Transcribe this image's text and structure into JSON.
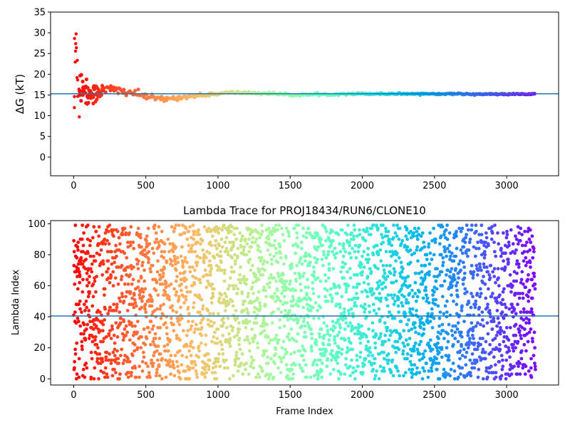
{
  "chart_data": [
    {
      "type": "scatter",
      "title": "",
      "xlabel": "",
      "ylabel": "ΔG (kT)",
      "xlim": [
        -160,
        3360
      ],
      "ylim": [
        -4.5,
        35
      ],
      "xticks": [
        0,
        500,
        1000,
        1500,
        2000,
        2500,
        3000
      ],
      "yticks": [
        0,
        5,
        10,
        15,
        20,
        25,
        30,
        35
      ],
      "colormap": "rainbow",
      "hline": {
        "y": 15.3,
        "color": "#1f77b4"
      },
      "series": [
        {
          "n_frames": 3200,
          "x_step": 8,
          "x": [
            0,
            6,
            12,
            20,
            28,
            36,
            44,
            52,
            60,
            72,
            84,
            96,
            110,
            124,
            140,
            160,
            180,
            200,
            225,
            250,
            275,
            300,
            340,
            380,
            420,
            460,
            500,
            540,
            580,
            620,
            660,
            700,
            750,
            800,
            850,
            900,
            950,
            1000,
            1100,
            1200,
            1300,
            1400,
            1500,
            1600,
            1700,
            1800,
            1900,
            2000,
            2200,
            2400,
            2600,
            2800,
            3000,
            3200
          ],
          "y": [
            15,
            20,
            30,
            25,
            18,
            17,
            16,
            17.5,
            17.8,
            16.5,
            15.6,
            15.2,
            15.1,
            15.6,
            15.3,
            15.7,
            15.9,
            16.0,
            16.2,
            16.3,
            16.2,
            16.0,
            15.9,
            15.7,
            15.4,
            15.0,
            14.6,
            14.3,
            14.1,
            14.0,
            14.1,
            14.3,
            14.5,
            14.6,
            14.8,
            15.0,
            15.2,
            15.3,
            15.6,
            15.5,
            15.4,
            15.3,
            15.0,
            15.1,
            15.1,
            15.2,
            15.3,
            15.3,
            15.3,
            15.3,
            15.3,
            15.2,
            15.2,
            15.2
          ],
          "spread": [
            14,
            14,
            12,
            10,
            8,
            6,
            4.5,
            3.5,
            3,
            2.6,
            2.4,
            2.2,
            2.0,
            1.9,
            1.7,
            1.5,
            1.3,
            1.2,
            1.1,
            1.0,
            0.95,
            0.9,
            0.8,
            0.7,
            0.65,
            0.6,
            0.55,
            0.5,
            0.45,
            0.42,
            0.4,
            0.38,
            0.35,
            0.33,
            0.3,
            0.3,
            0.28,
            0.26,
            0.24,
            0.22,
            0.2,
            0.2,
            0.19,
            0.18,
            0.17,
            0.16,
            0.15,
            0.14,
            0.13,
            0.12,
            0.11,
            0.1,
            0.1,
            0.1
          ]
        }
      ]
    },
    {
      "type": "scatter",
      "title": "Lambda Trace for PROJ18434/RUN6/CLONE10",
      "xlabel": "Frame Index",
      "ylabel": "Lambda Index",
      "xlim": [
        -160,
        3360
      ],
      "ylim": [
        -4,
        102
      ],
      "xticks": [
        0,
        500,
        1000,
        1500,
        2000,
        2500,
        3000
      ],
      "yticks": [
        0,
        20,
        40,
        60,
        80,
        100
      ],
      "colormap": "rainbow",
      "hline": {
        "y": 40.5,
        "color": "#1f77b4"
      },
      "series": [
        {
          "n_frames": 3200,
          "x_step": 1,
          "value_range": [
            0,
            99
          ]
        }
      ]
    }
  ]
}
